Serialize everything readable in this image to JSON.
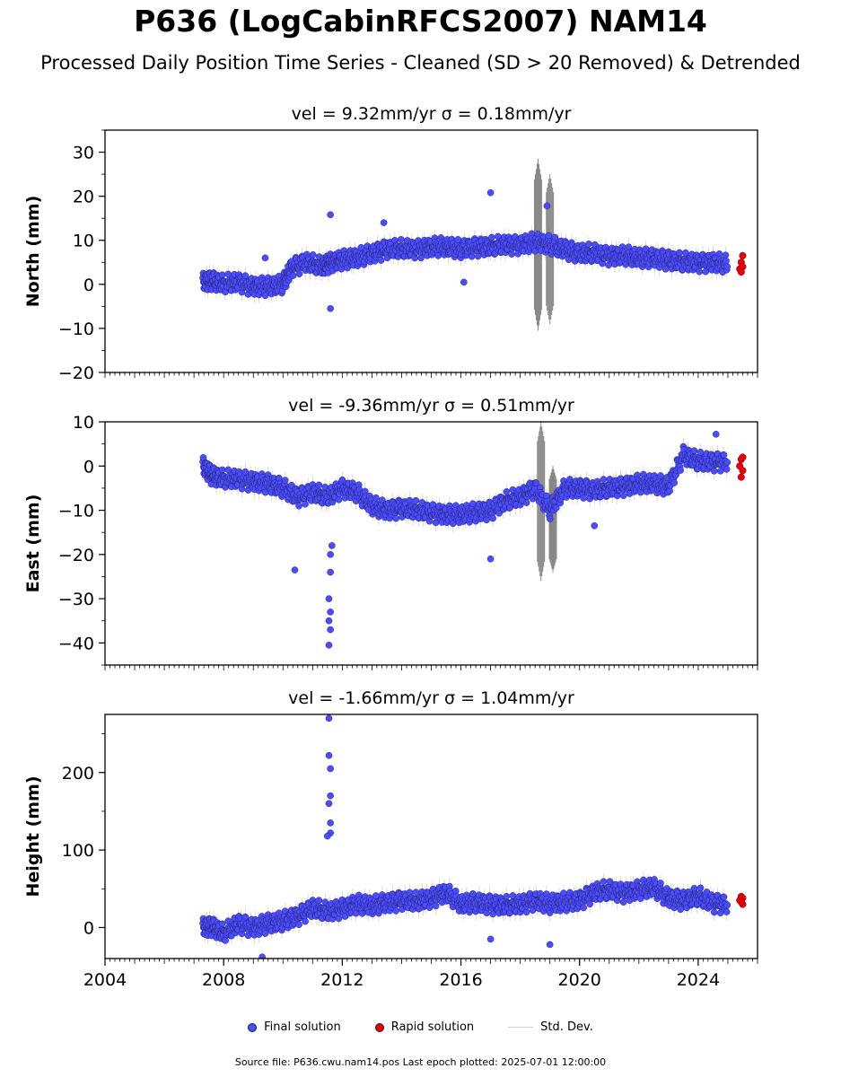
{
  "title": "P636 (LogCabinRFCS2007) NAM14",
  "subtitle": "Processed Daily Position Time Series - Cleaned (SD > 20 Removed) & Detrended",
  "legend": {
    "final": "Final solution",
    "rapid": "Rapid solution",
    "std": "Std. Dev."
  },
  "source_note": "Source file: P636.cwu.nam14.pos  Last epoch plotted: 2025-07-01 12:00:00",
  "colors": {
    "final": "#4b4bff",
    "rapid": "#e8000b",
    "std": "#b0b0b0",
    "std_dense": "#555555"
  },
  "chart_data": [
    {
      "type": "scatter",
      "title": "vel = 9.32mm/yr   σ = 0.18mm/yr",
      "ylabel": "North (mm)",
      "xlabel": "",
      "xlim": [
        2004,
        2026
      ],
      "ylim": [
        -20,
        35
      ],
      "yticks": [
        -20,
        -10,
        0,
        10,
        20,
        30
      ],
      "xticks": [],
      "series": [
        {
          "name": "Final solution",
          "points": [
            [
              2007.3,
              0.5
            ],
            [
              2007.6,
              1.0
            ],
            [
              2008.0,
              0.0
            ],
            [
              2008.5,
              0.5
            ],
            [
              2009.0,
              -0.5
            ],
            [
              2009.5,
              -0.5
            ],
            [
              2010.0,
              0.0
            ],
            [
              2010.3,
              4.0
            ],
            [
              2010.8,
              5.0
            ],
            [
              2011.3,
              4.0
            ],
            [
              2011.6,
              5.0
            ],
            [
              2012.0,
              5.5
            ],
            [
              2012.5,
              6.0
            ],
            [
              2013.0,
              7.0
            ],
            [
              2013.5,
              8.0
            ],
            [
              2014.0,
              8.0
            ],
            [
              2014.5,
              8.0
            ],
            [
              2015.0,
              8.5
            ],
            [
              2015.5,
              8.5
            ],
            [
              2016.0,
              8.0
            ],
            [
              2016.5,
              8.5
            ],
            [
              2017.0,
              8.5
            ],
            [
              2017.5,
              9.0
            ],
            [
              2018.0,
              9.0
            ],
            [
              2018.5,
              9.5
            ],
            [
              2019.0,
              9.0
            ],
            [
              2019.5,
              8.0
            ],
            [
              2020.0,
              7.0
            ],
            [
              2020.5,
              7.0
            ],
            [
              2021.0,
              6.5
            ],
            [
              2021.5,
              6.5
            ],
            [
              2022.0,
              6.0
            ],
            [
              2022.5,
              6.0
            ],
            [
              2023.0,
              5.5
            ],
            [
              2023.5,
              5.0
            ],
            [
              2024.0,
              5.0
            ],
            [
              2024.5,
              5.0
            ],
            [
              2025.0,
              4.5
            ],
            [
              2011.6,
              15.8
            ],
            [
              2011.6,
              -5.5
            ],
            [
              2017.0,
              20.8
            ],
            [
              2018.9,
              17.8
            ],
            [
              2016.1,
              0.5
            ],
            [
              2009.4,
              6.0
            ],
            [
              2013.4,
              14.0
            ]
          ]
        },
        {
          "name": "Rapid solution",
          "points": [
            [
              2025.4,
              3.5
            ],
            [
              2025.45,
              5.0
            ],
            [
              2025.5,
              4.0
            ],
            [
              2025.5,
              6.5
            ],
            [
              2025.45,
              2.8
            ]
          ]
        }
      ],
      "std_spikes": [
        {
          "x": 2018.6,
          "y": 9.0,
          "half": 19.5
        },
        {
          "x": 2019.0,
          "y": 8.0,
          "half": 17.0
        }
      ]
    },
    {
      "type": "scatter",
      "title": "vel = -9.36mm/yr   σ = 0.51mm/yr",
      "ylabel": "East (mm)",
      "xlabel": "",
      "xlim": [
        2004,
        2026
      ],
      "ylim": [
        -45,
        10
      ],
      "yticks": [
        -40,
        -30,
        -20,
        -10,
        0,
        10
      ],
      "xticks": [],
      "series": [
        {
          "name": "Final solution",
          "points": [
            [
              2007.3,
              0.0
            ],
            [
              2007.6,
              -2.0
            ],
            [
              2008.0,
              -3.0
            ],
            [
              2008.5,
              -3.0
            ],
            [
              2009.0,
              -3.5
            ],
            [
              2009.5,
              -4.0
            ],
            [
              2010.0,
              -5.0
            ],
            [
              2010.5,
              -7.0
            ],
            [
              2011.0,
              -6.0
            ],
            [
              2011.5,
              -7.0
            ],
            [
              2012.0,
              -5.0
            ],
            [
              2012.5,
              -6.0
            ],
            [
              2013.0,
              -9.0
            ],
            [
              2013.5,
              -10.0
            ],
            [
              2014.0,
              -9.5
            ],
            [
              2014.5,
              -10.0
            ],
            [
              2015.0,
              -10.5
            ],
            [
              2015.5,
              -11.0
            ],
            [
              2016.0,
              -11.0
            ],
            [
              2016.5,
              -10.5
            ],
            [
              2017.0,
              -10.0
            ],
            [
              2017.5,
              -8.0
            ],
            [
              2018.0,
              -7.0
            ],
            [
              2018.5,
              -5.0
            ],
            [
              2019.0,
              -10.0
            ],
            [
              2019.5,
              -5.0
            ],
            [
              2020.0,
              -5.0
            ],
            [
              2020.5,
              -5.5
            ],
            [
              2021.0,
              -5.0
            ],
            [
              2021.5,
              -4.5
            ],
            [
              2022.0,
              -4.0
            ],
            [
              2022.5,
              -4.0
            ],
            [
              2023.0,
              -4.5
            ],
            [
              2023.5,
              2.5
            ],
            [
              2024.0,
              1.0
            ],
            [
              2024.5,
              1.0
            ],
            [
              2025.0,
              1.0
            ],
            [
              2010.4,
              -23.5
            ],
            [
              2011.6,
              -20.0
            ],
            [
              2011.65,
              -18.0
            ],
            [
              2011.6,
              -24.0
            ],
            [
              2011.55,
              -30.0
            ],
            [
              2011.55,
              -35.0
            ],
            [
              2011.55,
              -40.5
            ],
            [
              2011.6,
              -37.0
            ],
            [
              2011.6,
              -33.0
            ],
            [
              2024.6,
              7.2
            ],
            [
              2017.0,
              -21.0
            ],
            [
              2020.5,
              -13.5
            ]
          ]
        },
        {
          "name": "Rapid solution",
          "points": [
            [
              2025.4,
              0.0
            ],
            [
              2025.45,
              1.5
            ],
            [
              2025.5,
              -1.0
            ],
            [
              2025.45,
              -2.5
            ],
            [
              2025.5,
              2.0
            ]
          ]
        }
      ],
      "std_spikes": [
        {
          "x": 2018.7,
          "y": -8.0,
          "half": 18.0
        },
        {
          "x": 2019.1,
          "y": -12.0,
          "half": 12.0
        }
      ]
    },
    {
      "type": "scatter",
      "title": "vel = -1.66mm/yr   σ = 1.04mm/yr",
      "ylabel": "Height (mm)",
      "xlabel": "",
      "xlim": [
        2004,
        2026
      ],
      "ylim": [
        -40,
        275
      ],
      "yticks": [
        0,
        100,
        200
      ],
      "xticks": [
        2004,
        2008,
        2012,
        2016,
        2020,
        2024
      ],
      "series": [
        {
          "name": "Final solution",
          "points": [
            [
              2007.3,
              0.0
            ],
            [
              2007.6,
              2.0
            ],
            [
              2008.0,
              -8.0
            ],
            [
              2008.5,
              5.0
            ],
            [
              2009.0,
              0.0
            ],
            [
              2009.5,
              5.0
            ],
            [
              2010.0,
              8.0
            ],
            [
              2010.5,
              15.0
            ],
            [
              2011.0,
              25.0
            ],
            [
              2011.5,
              20.0
            ],
            [
              2012.0,
              25.0
            ],
            [
              2012.5,
              30.0
            ],
            [
              2013.0,
              28.0
            ],
            [
              2013.5,
              32.0
            ],
            [
              2014.0,
              35.0
            ],
            [
              2014.5,
              33.0
            ],
            [
              2015.0,
              38.0
            ],
            [
              2015.5,
              45.0
            ],
            [
              2016.0,
              30.0
            ],
            [
              2016.5,
              32.0
            ],
            [
              2017.0,
              30.0
            ],
            [
              2017.5,
              28.0
            ],
            [
              2018.0,
              30.0
            ],
            [
              2018.5,
              35.0
            ],
            [
              2019.0,
              30.0
            ],
            [
              2019.5,
              33.0
            ],
            [
              2020.0,
              35.0
            ],
            [
              2020.5,
              45.0
            ],
            [
              2021.0,
              48.0
            ],
            [
              2021.5,
              45.0
            ],
            [
              2022.0,
              48.0
            ],
            [
              2022.5,
              52.0
            ],
            [
              2023.0,
              38.0
            ],
            [
              2023.5,
              35.0
            ],
            [
              2024.0,
              40.0
            ],
            [
              2024.5,
              32.0
            ],
            [
              2025.0,
              30.0
            ],
            [
              2011.55,
              270.0
            ],
            [
              2011.55,
              222.0
            ],
            [
              2011.6,
              205.0
            ],
            [
              2011.6,
              170.0
            ],
            [
              2011.55,
              160.0
            ],
            [
              2011.6,
              135.0
            ],
            [
              2011.6,
              122.0
            ],
            [
              2011.5,
              118.0
            ],
            [
              2019.0,
              -22.0
            ],
            [
              2009.3,
              -38.0
            ],
            [
              2017.0,
              -15.0
            ]
          ]
        },
        {
          "name": "Rapid solution",
          "points": [
            [
              2025.4,
              35.0
            ],
            [
              2025.45,
              40.0
            ],
            [
              2025.5,
              30.0
            ],
            [
              2025.5,
              38.0
            ],
            [
              2025.45,
              33.0
            ]
          ]
        }
      ],
      "std_spikes": []
    }
  ]
}
